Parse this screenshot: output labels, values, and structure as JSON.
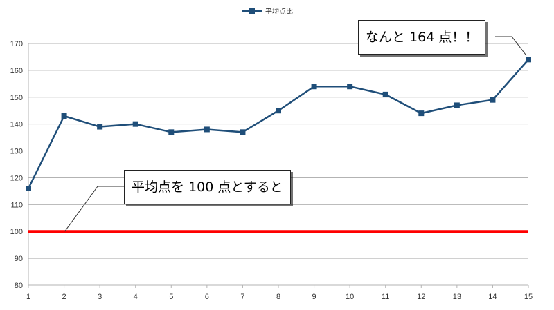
{
  "chart_data": {
    "type": "line",
    "legend": {
      "label": "平均点比",
      "position": "top-center"
    },
    "x": [
      1,
      2,
      3,
      4,
      5,
      6,
      7,
      8,
      9,
      10,
      11,
      12,
      13,
      14,
      15
    ],
    "series": [
      {
        "name": "平均点比",
        "values": [
          116,
          143,
          139,
          140,
          137,
          138,
          137,
          145,
          154,
          154,
          151,
          144,
          147,
          149,
          164
        ],
        "color": "#1f4e79"
      }
    ],
    "reference_line": {
      "y": 100,
      "color": "#ff0000"
    },
    "ylim": [
      80,
      170
    ],
    "yticks": [
      80,
      90,
      100,
      110,
      120,
      130,
      140,
      150,
      160,
      170
    ],
    "grid": true,
    "annotations": [
      {
        "text": "なんと 164 点！！",
        "target_x": 15,
        "target_y": 164
      },
      {
        "text": "平均点を 100 点とすると",
        "target_x": 2,
        "target_y": 100
      }
    ]
  }
}
